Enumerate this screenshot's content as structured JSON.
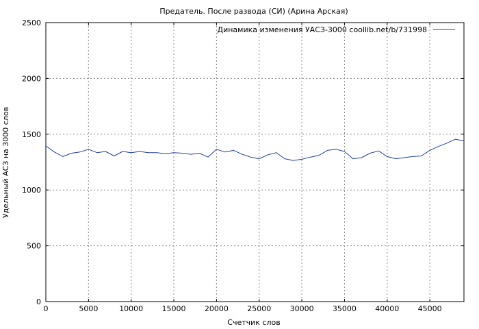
{
  "chart_data": {
    "type": "line",
    "title": "Предатель. После развода (СИ) (Арина Арская)",
    "xlabel": "Счетчик слов",
    "ylabel": "Удельный АСЗ на 3000 слов",
    "xlim": [
      0,
      49000
    ],
    "ylim": [
      0,
      2500
    ],
    "xticks": [
      0,
      5000,
      10000,
      15000,
      20000,
      25000,
      30000,
      35000,
      40000,
      45000
    ],
    "yticks": [
      0,
      500,
      1000,
      1500,
      2000,
      2500
    ],
    "grid": true,
    "legend_position": "top-right",
    "series": [
      {
        "name": "Динамика изменения УАСЗ-3000 coollib.net/b/731998",
        "color": "#1f3f99",
        "x": [
          0,
          1000,
          2000,
          3000,
          4000,
          5000,
          6000,
          7000,
          8000,
          9000,
          10000,
          11000,
          12000,
          13000,
          14000,
          15000,
          16000,
          17000,
          18000,
          19000,
          20000,
          21000,
          22000,
          23000,
          24000,
          25000,
          26000,
          27000,
          28000,
          29000,
          30000,
          31000,
          32000,
          33000,
          34000,
          35000,
          36000,
          37000,
          38000,
          39000,
          40000,
          41000,
          42000,
          43000,
          44000,
          45000,
          46000,
          47000,
          48000,
          49000
        ],
        "y": [
          1395,
          1340,
          1300,
          1330,
          1340,
          1365,
          1335,
          1345,
          1305,
          1345,
          1335,
          1345,
          1335,
          1335,
          1325,
          1335,
          1330,
          1320,
          1330,
          1295,
          1365,
          1340,
          1355,
          1320,
          1295,
          1280,
          1315,
          1335,
          1280,
          1265,
          1275,
          1295,
          1310,
          1355,
          1365,
          1345,
          1280,
          1290,
          1330,
          1350,
          1300,
          1280,
          1290,
          1300,
          1305,
          1355,
          1390,
          1420,
          1455,
          1440
        ]
      }
    ]
  }
}
